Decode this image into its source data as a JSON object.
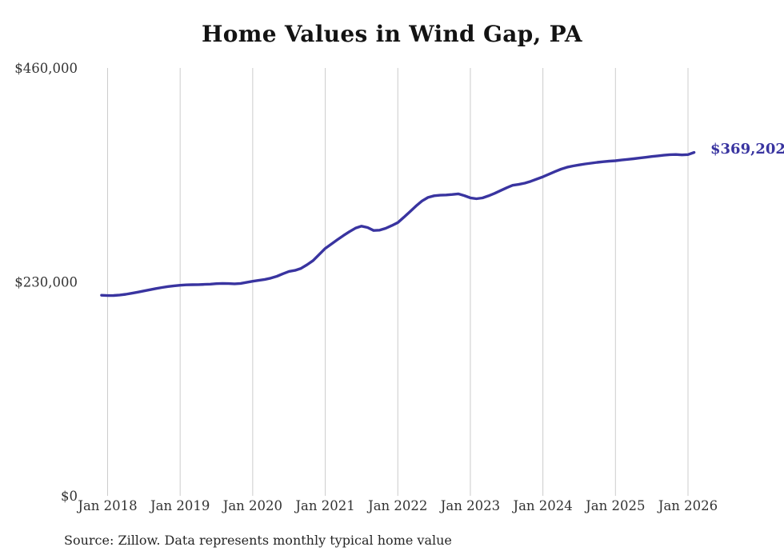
{
  "chart_data": {
    "type": "line",
    "title": "Home Values in Wind Gap, PA",
    "source_note": "Source: Zillow. Data represents monthly typical home value",
    "end_label": "$369,202",
    "end_value": 369202,
    "line_color": "#3934a0",
    "grid_color": "#cccccc",
    "axis_label_color": "#333333",
    "title_color": "#131313",
    "background_color": "#ffffff",
    "legend": false,
    "grid": "vertical-only",
    "y_axis": {
      "min": 0,
      "max": 460000
    },
    "y_ticks": [
      {
        "label": "$460,000",
        "value": 460000
      },
      {
        "label": "$230,000",
        "value": 230000
      },
      {
        "label": "$0",
        "value": 0
      }
    ],
    "x_tick_labels": [
      "Jan 2018",
      "Jan 2019",
      "Jan 2020",
      "Jan 2021",
      "Jan 2022",
      "Jan 2023",
      "Jan 2024",
      "Jan 2025",
      "Jan 2026"
    ],
    "series": [
      {
        "name": "Monthly typical home value",
        "months": [
          "2017-12",
          "2018-01",
          "2018-02",
          "2018-03",
          "2018-04",
          "2018-05",
          "2018-06",
          "2018-07",
          "2018-08",
          "2018-09",
          "2018-10",
          "2018-11",
          "2018-12",
          "2019-01",
          "2019-02",
          "2019-03",
          "2019-04",
          "2019-05",
          "2019-06",
          "2019-07",
          "2019-08",
          "2019-09",
          "2019-10",
          "2019-11",
          "2019-12",
          "2020-01",
          "2020-02",
          "2020-03",
          "2020-04",
          "2020-05",
          "2020-06",
          "2020-07",
          "2020-08",
          "2020-09",
          "2020-10",
          "2020-11",
          "2020-12",
          "2021-01",
          "2021-02",
          "2021-03",
          "2021-04",
          "2021-05",
          "2021-06",
          "2021-07",
          "2021-08",
          "2021-09",
          "2021-10",
          "2021-11",
          "2021-12",
          "2022-01",
          "2022-02",
          "2022-03",
          "2022-04",
          "2022-05",
          "2022-06",
          "2022-07",
          "2022-08",
          "2022-09",
          "2022-10",
          "2022-11",
          "2022-12",
          "2023-01",
          "2023-02",
          "2023-03",
          "2023-04",
          "2023-05",
          "2023-06",
          "2023-07",
          "2023-08",
          "2023-09",
          "2023-10",
          "2023-11",
          "2023-12",
          "2024-01",
          "2024-02",
          "2024-03",
          "2024-04",
          "2024-05",
          "2024-06",
          "2024-07",
          "2024-08",
          "2024-09",
          "2024-10",
          "2024-11",
          "2024-12",
          "2025-01",
          "2025-02",
          "2025-03",
          "2025-04",
          "2025-05",
          "2025-06",
          "2025-07",
          "2025-08",
          "2025-09",
          "2025-10",
          "2025-11",
          "2025-12",
          "2026-01",
          "2026-02"
        ],
        "values": [
          215600,
          215300,
          215400,
          215900,
          216700,
          217800,
          219000,
          220300,
          221600,
          222900,
          224000,
          225000,
          225800,
          226400,
          226800,
          227000,
          227100,
          227300,
          227600,
          228100,
          228400,
          228200,
          227900,
          228400,
          229500,
          230700,
          231600,
          232700,
          234000,
          236000,
          238800,
          241300,
          242400,
          244500,
          248500,
          253000,
          259500,
          266000,
          270700,
          275300,
          279800,
          284000,
          287800,
          289900,
          288500,
          285300,
          285600,
          287600,
          290500,
          293800,
          299500,
          305500,
          311500,
          317000,
          320800,
          322600,
          323200,
          323500,
          324000,
          324700,
          322800,
          320400,
          319400,
          320300,
          322500,
          325200,
          328200,
          331200,
          333900,
          334800,
          336200,
          338200,
          340600,
          343000,
          345800,
          348600,
          351200,
          353300,
          354700,
          355800,
          356800,
          357700,
          358500,
          359200,
          359800,
          360300,
          361000,
          361700,
          362400,
          363200,
          364000,
          364800,
          365500,
          366200,
          366800,
          367000,
          366500,
          366900,
          369202
        ]
      }
    ]
  }
}
